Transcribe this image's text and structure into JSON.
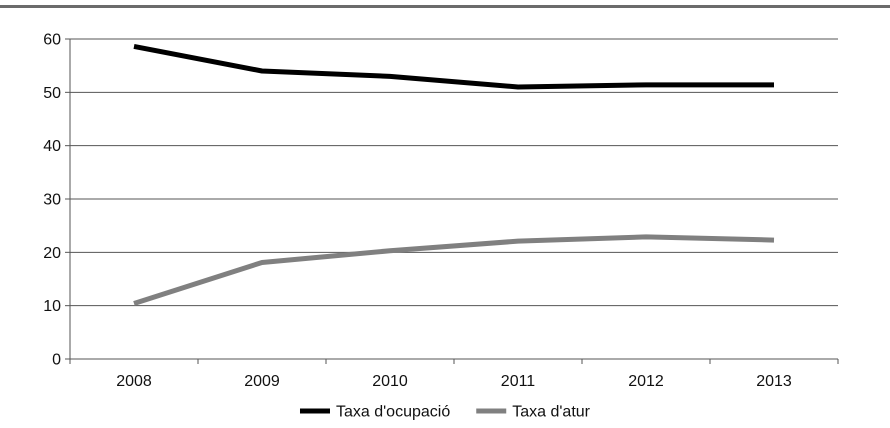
{
  "chart_data": {
    "type": "line",
    "title": "",
    "xlabel": "",
    "ylabel": "",
    "categories": [
      "2008",
      "2009",
      "2010",
      "2011",
      "2012",
      "2013"
    ],
    "ylim": [
      0,
      60
    ],
    "yticks": [
      0,
      10,
      20,
      30,
      40,
      50,
      60
    ],
    "grid": true,
    "legend_position": "bottom",
    "series": [
      {
        "name": "Taxa d'ocupació",
        "color": "#000000",
        "values": [
          58.6,
          54.0,
          53.0,
          51.0,
          51.4,
          51.4
        ]
      },
      {
        "name": "Taxa d'atur",
        "color": "#808080",
        "values": [
          10.4,
          18.1,
          20.3,
          22.1,
          22.9,
          22.3
        ]
      }
    ]
  }
}
